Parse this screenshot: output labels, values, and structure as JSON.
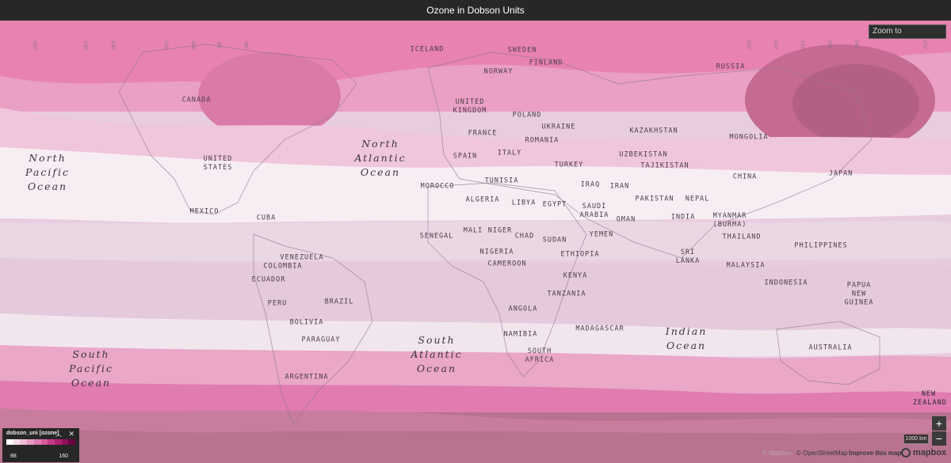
{
  "header": {
    "title": "Ozone in Dobson Units"
  },
  "search": {
    "placeholder": "Zoom to"
  },
  "controls": {
    "zoom_in": "+",
    "zoom_out": "−",
    "scale": "1000 km"
  },
  "legend": {
    "title": "dobson_uni [ozone]",
    "min": "88",
    "max": "160",
    "ramp_colors": [
      "#ffffff",
      "#f3dbe9",
      "#eebcd8",
      "#e89ac5",
      "#e07ab2",
      "#d65b9d",
      "#c73a86",
      "#b0206f",
      "#8f0f57",
      "#6b0540"
    ]
  },
  "oceans": [
    {
      "name": "north-pacific",
      "lines": [
        "North",
        "Pacific",
        "Ocean"
      ]
    },
    {
      "name": "north-atlantic",
      "lines": [
        "North",
        "Atlantic",
        "Ocean"
      ]
    },
    {
      "name": "south-atlantic",
      "lines": [
        "South",
        "Atlantic",
        "Ocean"
      ]
    },
    {
      "name": "south-pacific",
      "lines": [
        "South",
        "Pacific",
        "Ocean"
      ]
    },
    {
      "name": "indian",
      "lines": [
        "Indian",
        "Ocean"
      ]
    }
  ],
  "countries": [
    "ICELAND",
    "SWEDEN",
    "FINLAND",
    "NORWAY",
    "RUSSIA",
    "CANADA",
    "UNITED KINGDOM",
    "POLAND",
    "UKRAINE",
    "KAZAKHSTAN",
    "FRANCE",
    "ROMANIA",
    "MONGOLIA",
    "UNITED STATES",
    "SPAIN",
    "ITALY",
    "UZBEKISTAN",
    "TURKEY",
    "TAJIKISTAN",
    "CHINA",
    "JAPAN",
    "MOROCCO",
    "TUNISIA",
    "IRAQ",
    "IRAN",
    "ALGERIA",
    "LIBYA",
    "EGYPT",
    "SAUDI ARABIA",
    "PAKISTAN",
    "NEPAL",
    "MEXICO",
    "CUBA",
    "OMAN",
    "INDIA",
    "MYANMAR (BURMA)",
    "SENEGAL",
    "MALI",
    "NIGER",
    "CHAD",
    "SUDAN",
    "YEMEN",
    "THAILAND",
    "PHILIPPINES",
    "VENEZUELA",
    "NIGERIA",
    "ETHIOPIA",
    "SRI LANKA",
    "COLOMBIA",
    "CAMEROON",
    "MALAYSIA",
    "ECUADOR",
    "KENYA",
    "INDONESIA",
    "PAPUA NEW GUINEA",
    "PERU",
    "BRAZIL",
    "TANZANIA",
    "ANGOLA",
    "BOLIVIA",
    "NAMIBIA",
    "MADAGASCAR",
    "PARAGUAY",
    "SOUTH AFRICA",
    "AUSTRALIA",
    "ARGENTINA",
    "NEW ZEALAND"
  ],
  "attribution": {
    "osm": "© OpenStreetMap",
    "improve": "Improve this map",
    "brand": "mapbox",
    "mapbox_copy": "© Mapbox"
  },
  "graticule": [
    "-150°",
    "-140°",
    "-130°",
    "-120°",
    "-110°",
    "-100°",
    "-90°",
    "-80°",
    "-70°",
    "-60°",
    "-50°",
    "-40°",
    "-30°",
    "60°",
    "70°",
    "80°",
    "90°",
    "100°",
    "110°",
    "120°",
    "130°",
    "140°",
    "150°",
    "160°",
    "170°",
    "180°"
  ]
}
